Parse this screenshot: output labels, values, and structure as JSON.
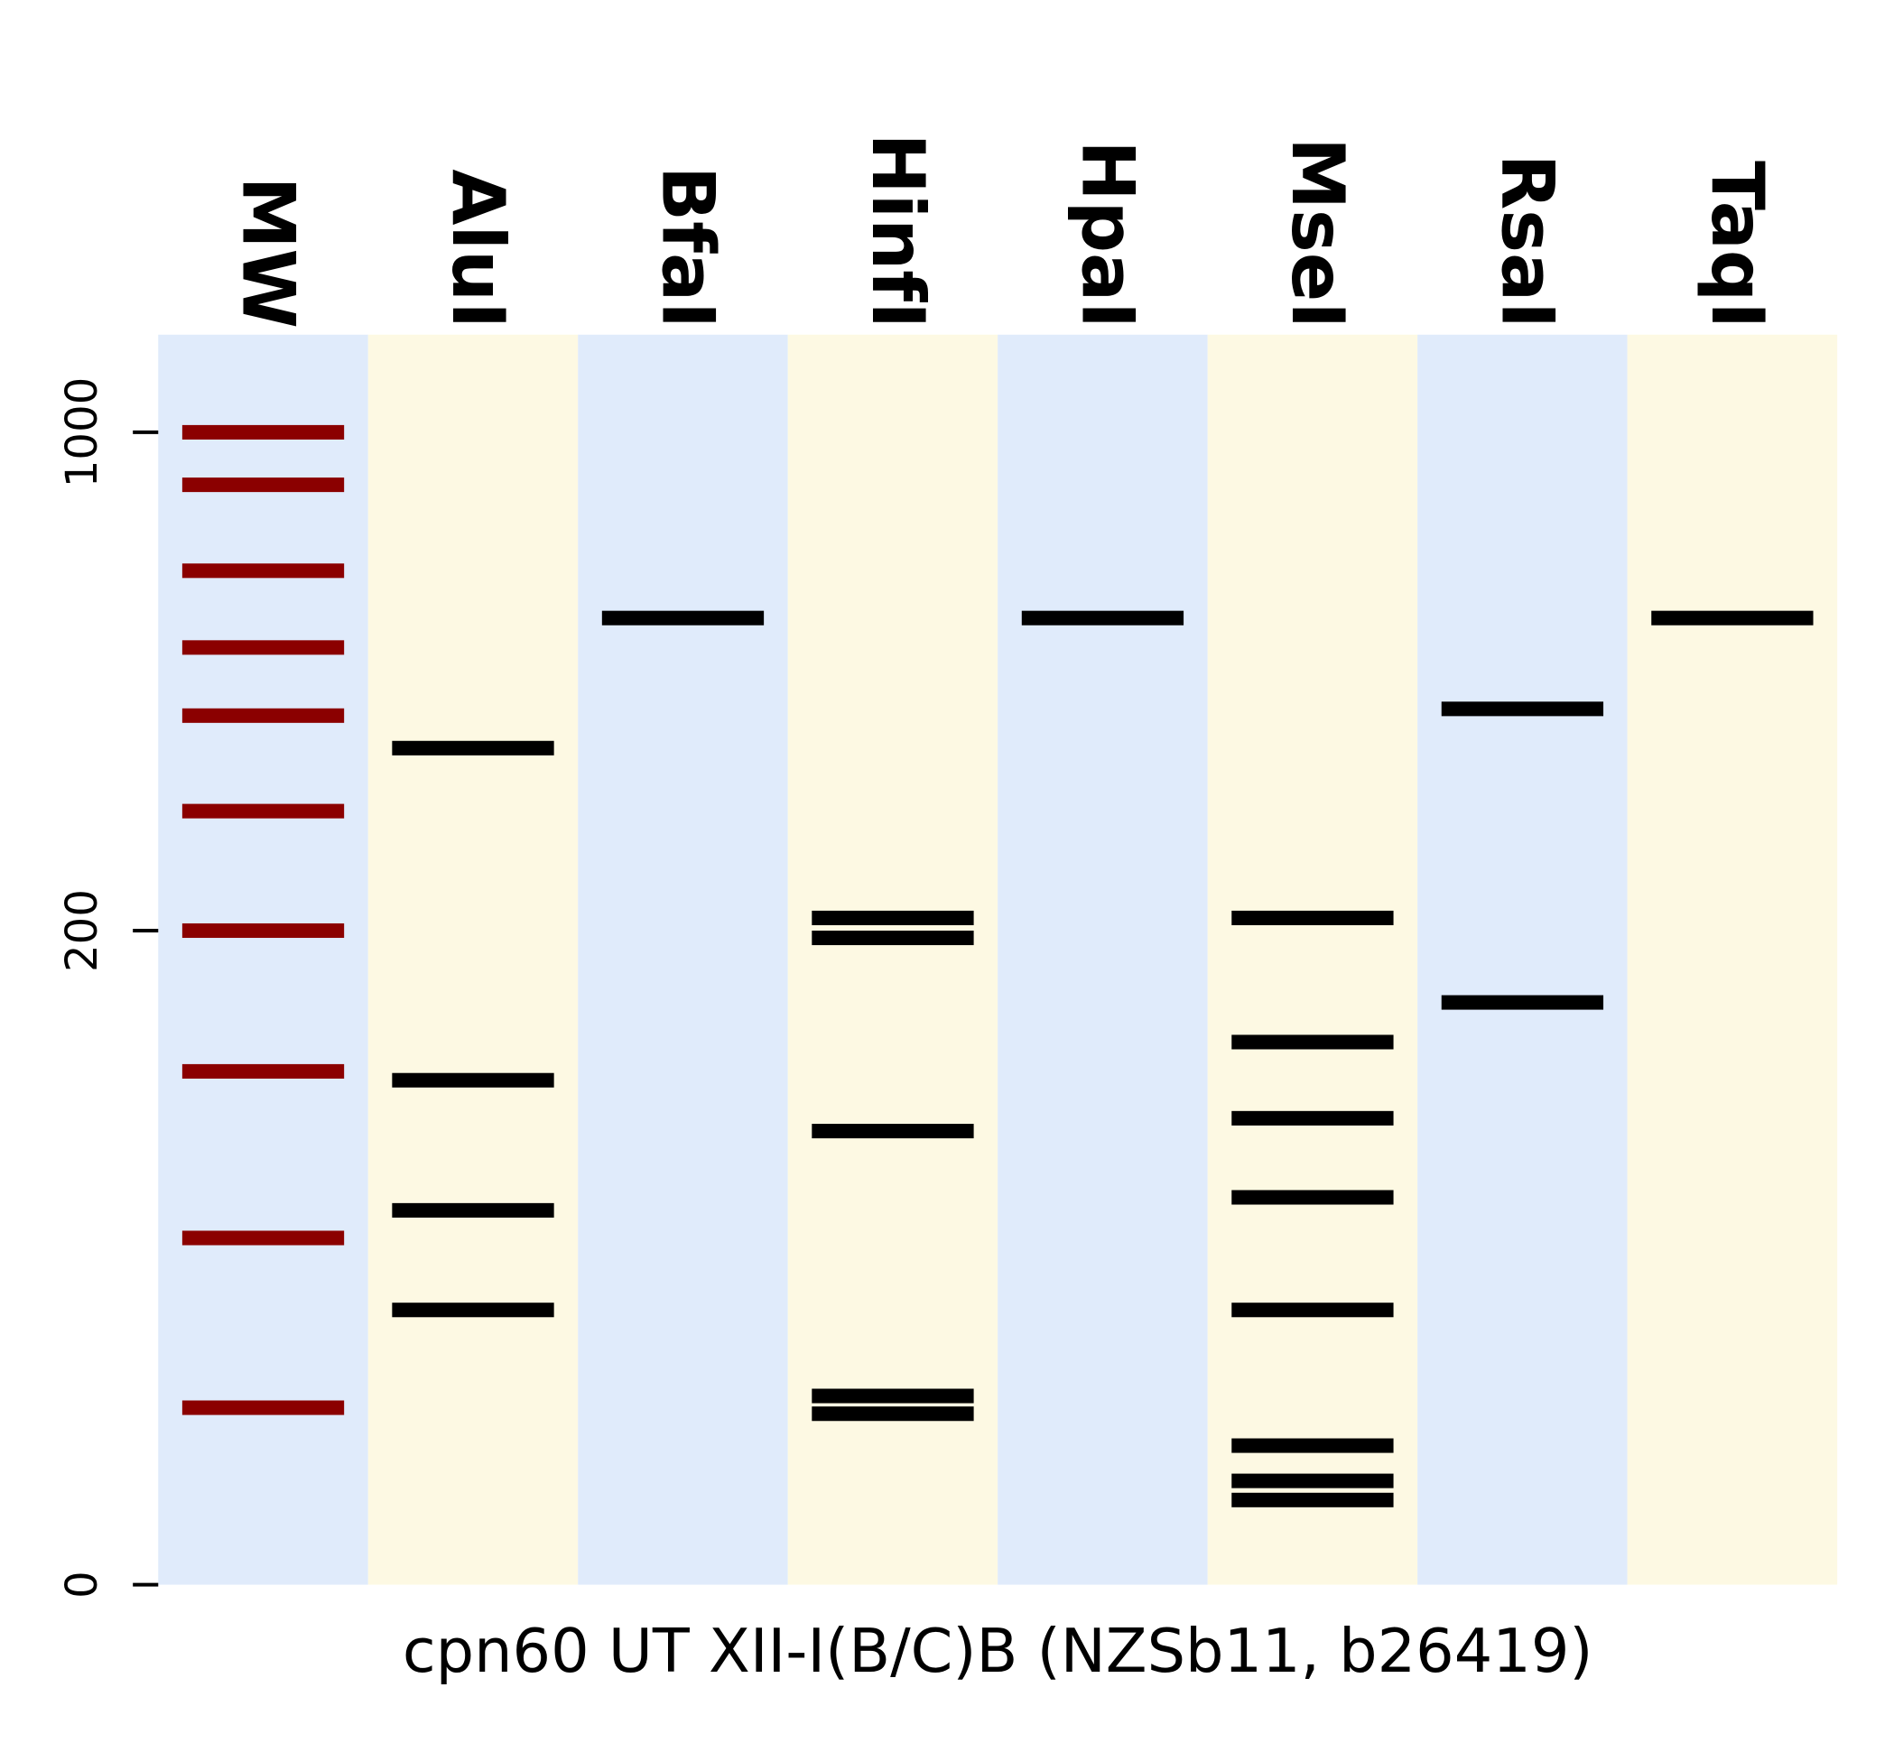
{
  "chart_data": {
    "type": "gel",
    "title": "cpn60 UT XII-I(B/C)B (NZSb11, b26419)",
    "yscale": "log",
    "ylim": [
      0,
      1350
    ],
    "yticks": [
      0,
      200,
      1000
    ],
    "lane_colors": [
      "#e0ebfb",
      "#fdf9e3"
    ],
    "series": [
      {
        "name": "MW",
        "color": "#8b0000",
        "values": [
          1000,
          850,
          650,
          510,
          410,
          300,
          200,
          120,
          60,
          23
        ]
      },
      {
        "name": "AluI",
        "color": "#000000",
        "values": [
          369,
          116,
          68,
          42
        ]
      },
      {
        "name": "BfaI",
        "color": "#000000",
        "values": [
          560
        ]
      },
      {
        "name": "HinfI",
        "color": "#000000",
        "values": [
          209,
          195,
          95,
          25,
          22
        ]
      },
      {
        "name": "HpaI",
        "color": "#000000",
        "values": [
          560
        ]
      },
      {
        "name": "MseI",
        "color": "#000000",
        "values": [
          209,
          134,
          100,
          72,
          42,
          17,
          12,
          9.5
        ]
      },
      {
        "name": "RsaI",
        "color": "#000000",
        "values": [
          419,
          155
        ]
      },
      {
        "name": "TaqI",
        "color": "#000000",
        "values": [
          560
        ]
      }
    ]
  }
}
